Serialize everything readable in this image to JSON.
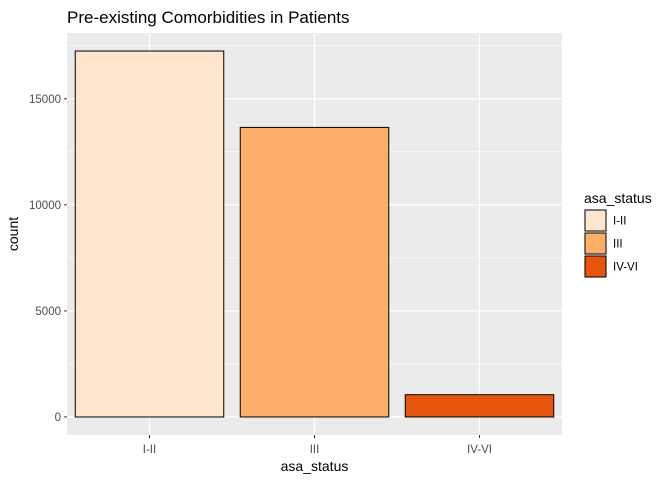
{
  "chart_data": {
    "type": "bar",
    "title": "Pre-existing Comorbidities in Patients",
    "xlabel": "asa_status",
    "ylabel": "count",
    "categories": [
      "I-II",
      "III",
      "IV-VI"
    ],
    "values": [
      17250,
      13650,
      1050
    ],
    "colors": [
      "#fee6ce",
      "#fdae6b",
      "#e6550d"
    ],
    "bar_outline": "#000000",
    "ylim": [
      -850,
      18100
    ],
    "yticks": [
      0,
      5000,
      10000,
      15000
    ],
    "ytick_labels": [
      "0",
      "5000",
      "10000",
      "15000"
    ],
    "grid": true,
    "panel_background": "#ebebeb",
    "legend": {
      "title": "asa_status",
      "position": "right",
      "entries": [
        "I-II",
        "III",
        "IV-VI"
      ]
    }
  }
}
